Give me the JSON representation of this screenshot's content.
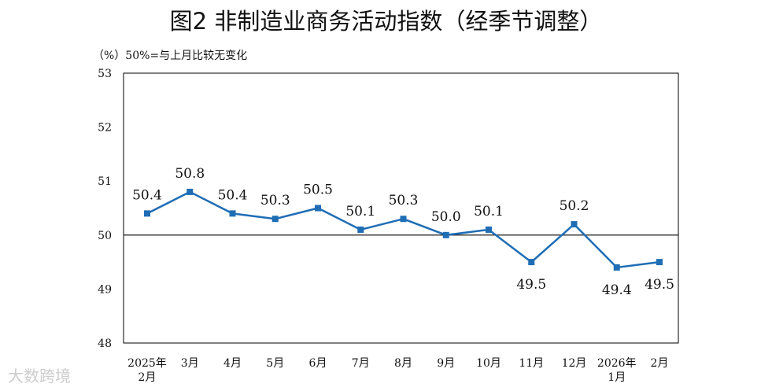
{
  "chart_data": {
    "type": "line",
    "title": "图2  非制造业商务活动指数（经季节调整）",
    "ylabel": "（%）50%=与上月比较无变化",
    "categories": [
      [
        "2025年",
        "2月"
      ],
      [
        "3月"
      ],
      [
        "4月"
      ],
      [
        "5月"
      ],
      [
        "6月"
      ],
      [
        "7月"
      ],
      [
        "8月"
      ],
      [
        "9月"
      ],
      [
        "10月"
      ],
      [
        "11月"
      ],
      [
        "12月"
      ],
      [
        "2026年",
        "1月"
      ],
      [
        "2月"
      ]
    ],
    "values": [
      50.4,
      50.8,
      50.4,
      50.3,
      50.5,
      50.1,
      50.3,
      50.0,
      50.1,
      49.5,
      50.2,
      49.4,
      49.5
    ],
    "data_labels": [
      "50.4",
      "50.8",
      "50.4",
      "50.3",
      "50.5",
      "50.1",
      "50.3",
      "50.0",
      "50.1",
      "49.5",
      "50.2",
      "49.4",
      "49.5"
    ],
    "label_position": [
      "above",
      "above",
      "above",
      "above",
      "above",
      "above",
      "above",
      "above",
      "above",
      "below",
      "above",
      "below",
      "below"
    ],
    "ylim": [
      48,
      53
    ],
    "yticks": [
      "48",
      "49",
      "50",
      "51",
      "52",
      "53"
    ],
    "reference_line": 50,
    "grid": false,
    "color": "#1f6db5"
  },
  "watermark": "大数跨境"
}
